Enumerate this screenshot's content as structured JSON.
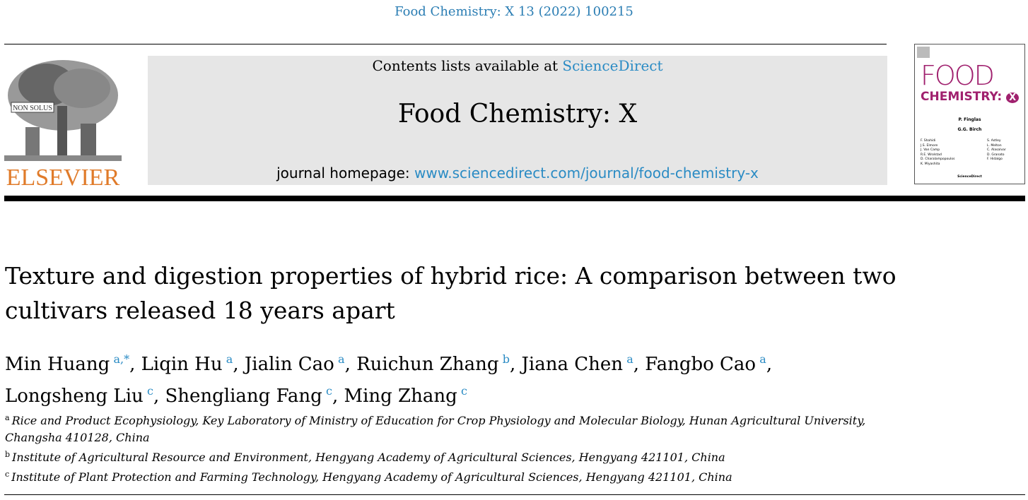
{
  "citation": "Food Chemistry: X 13 (2022) 100215",
  "publisher": {
    "logo_text": "ELSEVIER",
    "motto": "NON SOLUS"
  },
  "banner": {
    "contents_prefix": "Contents lists available at ",
    "contents_link": "ScienceDirect",
    "journal_name": "Food Chemistry: X",
    "homepage_prefix": "journal homepage: ",
    "homepage_link": "www.sciencedirect.com/journal/food-chemistry-x"
  },
  "cover": {
    "line1": "FOOD",
    "line2": "CHEMISTRY:",
    "badge": "X",
    "editor_in_chief": "P. Finglas",
    "editor_emeritus": "G.G. Birch",
    "editors_left": [
      "F. Shahidi",
      "J.S. Elmore",
      "J. Van Camp",
      "R.E. Wrolstad",
      "D. Charalampopoulos",
      "K. Miyashita"
    ],
    "editors_right": [
      "S. Astley",
      "L. Melton",
      "C. Alasalvar",
      "D. Granato",
      "F. Hidalgo"
    ],
    "footer": "ScienceDirect"
  },
  "article": {
    "title": "Texture and digestion properties of hybrid rice: A comparison between two cultivars released 18 years apart",
    "authors": [
      {
        "name": "Min Huang",
        "aff": "a,*",
        "sep": ", "
      },
      {
        "name": "Liqin Hu",
        "aff": "a",
        "sep": ", "
      },
      {
        "name": "Jialin Cao",
        "aff": "a",
        "sep": ", "
      },
      {
        "name": "Ruichun Zhang",
        "aff": "b",
        "sep": ", "
      },
      {
        "name": "Jiana Chen",
        "aff": "a",
        "sep": ", "
      },
      {
        "name": "Fangbo Cao",
        "aff": "a",
        "sep": ", "
      },
      {
        "name": "Longsheng Liu",
        "aff": "c",
        "sep": ", "
      },
      {
        "name": "Shengliang Fang",
        "aff": "c",
        "sep": ", "
      },
      {
        "name": "Ming Zhang",
        "aff": "c",
        "sep": ""
      }
    ],
    "affiliations": [
      {
        "label": "a",
        "text": "Rice and Product Ecophysiology, Key Laboratory of Ministry of Education for Crop Physiology and Molecular Biology, Hunan Agricultural University, Changsha 410128, China"
      },
      {
        "label": "b",
        "text": "Institute of Agricultural Resource and Environment, Hengyang Academy of Agricultural Sciences, Hengyang 421101, China"
      },
      {
        "label": "c",
        "text": "Institute of Plant Protection and Farming Technology, Hengyang Academy of Agricultural Sciences, Hengyang 421101, China"
      }
    ]
  },
  "colors": {
    "link": "#2a8bc4",
    "elsevier": "#e07b2a",
    "cover_magenta": "#a0206e"
  }
}
